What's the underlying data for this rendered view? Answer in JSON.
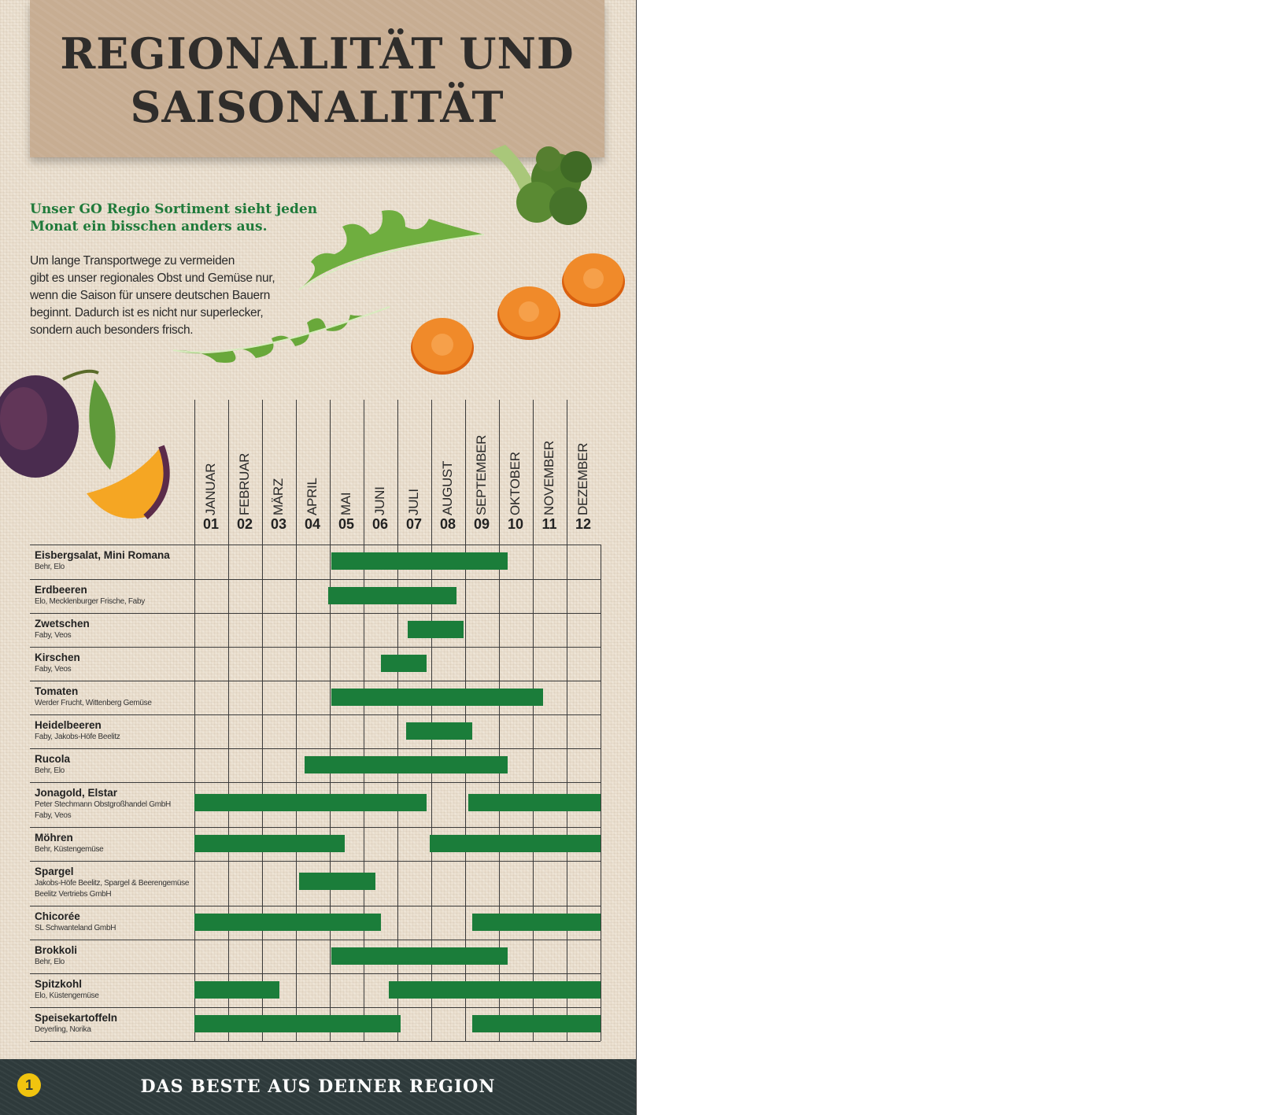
{
  "title": {
    "line1": "REGIONALITÄT UND",
    "line2": "SAISONALITÄT"
  },
  "subtitle": {
    "line1": "Unser GO Regio Sortiment sieht jeden",
    "line2": "Monat ein bisschen anders aus."
  },
  "intro": {
    "lines": [
      "Um lange Transportwege zu vermeiden",
      "gibt es unser regionales Obst und Gemüse nur,",
      "wenn die Saison für unsere deutschen Bauern",
      "beginnt. Dadurch ist es nicht nur superlecker,",
      "sondern auch besonders frisch."
    ]
  },
  "chart_data": {
    "type": "table",
    "months": [
      {
        "name": "JANUAR",
        "num": "01"
      },
      {
        "name": "FEBRUAR",
        "num": "02"
      },
      {
        "name": "MÄRZ",
        "num": "03"
      },
      {
        "name": "APRIL",
        "num": "04"
      },
      {
        "name": "MAI",
        "num": "05"
      },
      {
        "name": "JUNI",
        "num": "06"
      },
      {
        "name": "JULI",
        "num": "07"
      },
      {
        "name": "AUGUST",
        "num": "08"
      },
      {
        "name": "SEPTEMBER",
        "num": "09"
      },
      {
        "name": "OKTOBER",
        "num": "10"
      },
      {
        "name": "NOVEMBER",
        "num": "11"
      },
      {
        "name": "DEZEMBER",
        "num": "12"
      }
    ],
    "rows": [
      {
        "name": "Eisbergsalat, Mini Romana",
        "sources": [
          "Behr, Elo"
        ],
        "seasons": [
          [
            5.05,
            10.25
          ]
        ]
      },
      {
        "name": "Erdbeeren",
        "sources": [
          "Elo, Mecklenburger Frische, Faby"
        ],
        "seasons": [
          [
            4.95,
            8.75
          ]
        ]
      },
      {
        "name": "Zwetschen",
        "sources": [
          "Faby, Veos"
        ],
        "seasons": [
          [
            7.3,
            8.95
          ]
        ]
      },
      {
        "name": "Kirschen",
        "sources": [
          "Faby, Veos"
        ],
        "seasons": [
          [
            6.5,
            7.85
          ]
        ]
      },
      {
        "name": "Tomaten",
        "sources": [
          "Werder Frucht, Wittenberg Gemüse"
        ],
        "seasons": [
          [
            5.05,
            11.3
          ]
        ]
      },
      {
        "name": "Heidelbeeren",
        "sources": [
          "Faby, Jakobs-Höfe Beelitz"
        ],
        "seasons": [
          [
            7.25,
            9.2
          ]
        ]
      },
      {
        "name": "Rucola",
        "sources": [
          "Behr, Elo"
        ],
        "seasons": [
          [
            4.25,
            10.25
          ]
        ]
      },
      {
        "name": "Jonagold, Elstar",
        "sources": [
          "Peter Stechmann Obstgroßhandel GmbH",
          "Faby, Veos"
        ],
        "seasons": [
          [
            1.0,
            7.85
          ],
          [
            9.1,
            13.0
          ]
        ]
      },
      {
        "name": "Möhren",
        "sources": [
          "Behr, Küstengemüse"
        ],
        "seasons": [
          [
            1.0,
            5.45
          ],
          [
            7.95,
            13.0
          ]
        ]
      },
      {
        "name": "Spargel",
        "sources": [
          "Jakobs-Höfe Beelitz, Spargel & Beerengemüse",
          "Beelitz Vertriebs GmbH"
        ],
        "seasons": [
          [
            4.1,
            6.35
          ]
        ]
      },
      {
        "name": "Chicorée",
        "sources": [
          "SL Schwanteland GmbH"
        ],
        "seasons": [
          [
            1.0,
            6.5
          ],
          [
            9.2,
            13.0
          ]
        ]
      },
      {
        "name": "Brokkoli",
        "sources": [
          "Behr, Elo"
        ],
        "seasons": [
          [
            5.05,
            10.25
          ]
        ]
      },
      {
        "name": "Spitzkohl",
        "sources": [
          "Elo, Küstengemüse"
        ],
        "seasons": [
          [
            1.0,
            3.5
          ],
          [
            6.75,
            13.0
          ]
        ]
      },
      {
        "name": "Speisekartoffeln",
        "sources": [
          "Deyerling, Norika"
        ],
        "seasons": [
          [
            1.0,
            7.1
          ],
          [
            9.2,
            13.0
          ]
        ]
      }
    ],
    "bar_color": "#1b7d3a"
  },
  "footer": {
    "text": "DAS BESTE AUS DEINER REGION",
    "logo_glyph": "1"
  }
}
